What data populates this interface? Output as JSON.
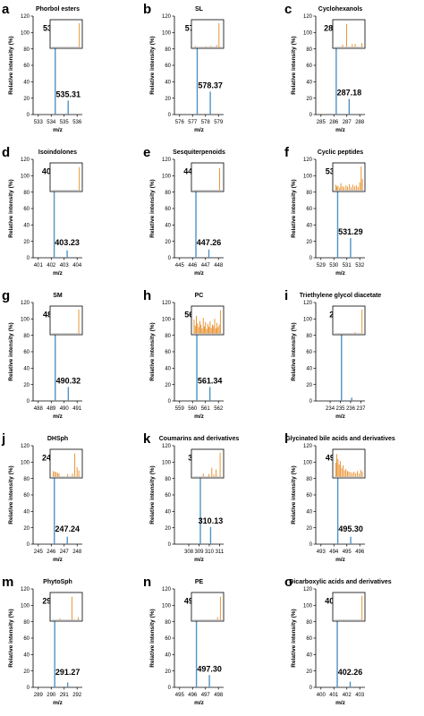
{
  "colors": {
    "main_bar": "#4f93c6",
    "inset_bar": "#e8891f",
    "axis": "#000000"
  },
  "chart_data": [
    {
      "type": "bar",
      "panel": "a",
      "title": "Phorbol esters",
      "xlabel": "m/z",
      "ylabel": "Relative intensity (%)",
      "xlim": [
        532.6,
        536.4
      ],
      "xticks": [
        533,
        534,
        535,
        536
      ],
      "ylim": [
        0,
        120
      ],
      "yticks": [
        0,
        20,
        40,
        60,
        80,
        100,
        120
      ],
      "peaks": [
        {
          "x": 534.31,
          "y": 100,
          "label": "534.31"
        },
        {
          "x": 535.31,
          "y": 17,
          "label": "535.31"
        }
      ],
      "inset": {
        "values": [
          {
            "x": 0.96,
            "y": 0.95
          }
        ]
      }
    },
    {
      "type": "bar",
      "panel": "b",
      "title": "SL",
      "xlabel": "m/z",
      "ylabel": "Relative intensity (%)",
      "xlim": [
        575.6,
        579.4
      ],
      "xticks": [
        576,
        577,
        578,
        579
      ],
      "ylim": [
        0,
        120
      ],
      "yticks": [
        0,
        20,
        40,
        60,
        80,
        100,
        120
      ],
      "peaks": [
        {
          "x": 577.36,
          "y": 100,
          "label": "577.36"
        },
        {
          "x": 578.37,
          "y": 28,
          "label": "578.37"
        }
      ],
      "inset": {
        "values": [
          {
            "x": 0.08,
            "y": 0.04
          },
          {
            "x": 0.45,
            "y": 0.03
          },
          {
            "x": 0.62,
            "y": 0.05
          },
          {
            "x": 0.82,
            "y": 0.08
          },
          {
            "x": 0.9,
            "y": 0.95
          }
        ]
      }
    },
    {
      "type": "bar",
      "panel": "c",
      "title": "Cyclohexanols",
      "xlabel": "m/z",
      "ylabel": "Relative intensity (%)",
      "xlim": [
        284.6,
        288.4
      ],
      "xticks": [
        285,
        286,
        287,
        288
      ],
      "ylim": [
        0,
        120
      ],
      "yticks": [
        0,
        20,
        40,
        60,
        80,
        100,
        120
      ],
      "peaks": [
        {
          "x": 286.18,
          "y": 100,
          "label": "286.18"
        },
        {
          "x": 287.18,
          "y": 19,
          "label": "287.18"
        }
      ],
      "inset": {
        "values": [
          {
            "x": 0.28,
            "y": 0.1
          },
          {
            "x": 0.42,
            "y": 0.92
          },
          {
            "x": 0.62,
            "y": 0.12
          },
          {
            "x": 0.72,
            "y": 0.12
          },
          {
            "x": 0.95,
            "y": 0.16
          }
        ]
      }
    },
    {
      "type": "bar",
      "panel": "d",
      "title": "Isoindolones",
      "xlabel": "m/z",
      "ylabel": "Relative intensity (%)",
      "xlim": [
        400.6,
        404.4
      ],
      "xticks": [
        401,
        402,
        403,
        404
      ],
      "ylim": [
        0,
        120
      ],
      "yticks": [
        0,
        20,
        40,
        60,
        80,
        100,
        120
      ],
      "peaks": [
        {
          "x": 402.23,
          "y": 100,
          "label": "402.23"
        },
        {
          "x": 403.23,
          "y": 9,
          "label": "403.23"
        }
      ],
      "inset": {
        "values": [
          {
            "x": 0.96,
            "y": 0.92
          }
        ]
      }
    },
    {
      "type": "bar",
      "panel": "e",
      "title": "Sesquiterpenoids",
      "xlabel": "m/z",
      "ylabel": "Relative intensity (%)",
      "xlim": [
        444.6,
        448.4
      ],
      "xticks": [
        445,
        446,
        447,
        448
      ],
      "ylim": [
        0,
        120
      ],
      "yticks": [
        0,
        20,
        40,
        60,
        80,
        100,
        120
      ],
      "peaks": [
        {
          "x": 446.26,
          "y": 100,
          "label": "446.26"
        },
        {
          "x": 447.26,
          "y": 10,
          "label": "447.26"
        }
      ],
      "inset": {
        "values": [
          {
            "x": 0.92,
            "y": 0.88
          }
        ]
      }
    },
    {
      "type": "bar",
      "panel": "f",
      "title": "Cyclic peptides",
      "xlabel": "m/z",
      "ylabel": "Relative intensity (%)",
      "xlim": [
        528.6,
        532.4
      ],
      "xticks": [
        529,
        530,
        531,
        532
      ],
      "ylim": [
        0,
        120
      ],
      "yticks": [
        0,
        20,
        40,
        60,
        80,
        100,
        120
      ],
      "peaks": [
        {
          "x": 530.29,
          "y": 100,
          "label": "530.29"
        },
        {
          "x": 531.29,
          "y": 24,
          "label": "531.29"
        }
      ],
      "inset": {
        "values": [
          {
            "x": 0.04,
            "y": 0.22
          },
          {
            "x": 0.08,
            "y": 0.15
          },
          {
            "x": 0.12,
            "y": 0.18
          },
          {
            "x": 0.18,
            "y": 0.1
          },
          {
            "x": 0.22,
            "y": 0.28
          },
          {
            "x": 0.28,
            "y": 0.16
          },
          {
            "x": 0.33,
            "y": 0.12
          },
          {
            "x": 0.4,
            "y": 0.2
          },
          {
            "x": 0.45,
            "y": 0.14
          },
          {
            "x": 0.52,
            "y": 0.24
          },
          {
            "x": 0.58,
            "y": 0.12
          },
          {
            "x": 0.64,
            "y": 0.22
          },
          {
            "x": 0.7,
            "y": 0.15
          },
          {
            "x": 0.76,
            "y": 0.2
          },
          {
            "x": 0.82,
            "y": 0.13
          },
          {
            "x": 0.88,
            "y": 0.32
          },
          {
            "x": 0.93,
            "y": 0.95
          },
          {
            "x": 0.97,
            "y": 0.45
          }
        ]
      }
    },
    {
      "type": "bar",
      "panel": "g",
      "title": "SM",
      "xlabel": "m/z",
      "ylabel": "Relative intensity (%)",
      "xlim": [
        487.6,
        491.4
      ],
      "xticks": [
        488,
        489,
        490,
        491
      ],
      "ylim": [
        0,
        120
      ],
      "yticks": [
        0,
        20,
        40,
        60,
        80,
        100,
        120
      ],
      "peaks": [
        {
          "x": 489.31,
          "y": 100,
          "label": "489.31"
        },
        {
          "x": 490.32,
          "y": 17,
          "label": "490.32"
        }
      ],
      "inset": {
        "values": [
          {
            "x": 0.94,
            "y": 0.95
          }
        ]
      }
    },
    {
      "type": "bar",
      "panel": "h",
      "title": "PC",
      "xlabel": "m/z",
      "ylabel": "Relative intensity (%)",
      "xlim": [
        558.6,
        562.4
      ],
      "xticks": [
        559,
        560,
        561,
        562
      ],
      "ylim": [
        0,
        120
      ],
      "yticks": [
        0,
        20,
        40,
        60,
        80,
        100,
        120
      ],
      "peaks": [
        {
          "x": 560.33,
          "y": 100,
          "label": "560.33"
        },
        {
          "x": 561.34,
          "y": 17,
          "label": "561.34"
        }
      ],
      "inset": {
        "values": [
          {
            "x": 0.03,
            "y": 0.55
          },
          {
            "x": 0.07,
            "y": 0.3
          },
          {
            "x": 0.11,
            "y": 0.7
          },
          {
            "x": 0.15,
            "y": 0.4
          },
          {
            "x": 0.19,
            "y": 0.25
          },
          {
            "x": 0.23,
            "y": 0.5
          },
          {
            "x": 0.27,
            "y": 0.35
          },
          {
            "x": 0.31,
            "y": 0.2
          },
          {
            "x": 0.35,
            "y": 0.62
          },
          {
            "x": 0.39,
            "y": 0.28
          },
          {
            "x": 0.43,
            "y": 0.45
          },
          {
            "x": 0.47,
            "y": 0.18
          },
          {
            "x": 0.51,
            "y": 0.38
          },
          {
            "x": 0.55,
            "y": 0.26
          },
          {
            "x": 0.59,
            "y": 0.48
          },
          {
            "x": 0.63,
            "y": 0.22
          },
          {
            "x": 0.67,
            "y": 0.35
          },
          {
            "x": 0.71,
            "y": 0.3
          },
          {
            "x": 0.75,
            "y": 0.58
          },
          {
            "x": 0.79,
            "y": 0.2
          },
          {
            "x": 0.83,
            "y": 0.42
          },
          {
            "x": 0.87,
            "y": 0.25
          },
          {
            "x": 0.91,
            "y": 0.35
          },
          {
            "x": 0.95,
            "y": 0.92
          }
        ]
      }
    },
    {
      "type": "bar",
      "panel": "i",
      "title": "Triethylene glycol diacetate",
      "xlabel": "m/z",
      "ylabel": "Relative intensity (%)",
      "xlim": [
        232.6,
        237.4
      ],
      "xticks": [
        234,
        235,
        236,
        237
      ],
      "ylim": [
        0,
        120
      ],
      "yticks": [
        0,
        20,
        40,
        60,
        80,
        100,
        120
      ],
      "peaks": [
        {
          "x": 235.11,
          "y": 100,
          "label": "235.11"
        },
        {
          "x": 236.11,
          "y": 4
        }
      ],
      "inset": {
        "values": [
          {
            "x": 0.72,
            "y": 0.05
          },
          {
            "x": 0.96,
            "y": 0.95
          }
        ]
      }
    },
    {
      "type": "bar",
      "panel": "j",
      "title": "DHSph",
      "xlabel": "m/z",
      "ylabel": "Relative intensity (%)",
      "xlim": [
        244.6,
        248.4
      ],
      "xticks": [
        245,
        246,
        247,
        248
      ],
      "ylim": [
        0,
        120
      ],
      "yticks": [
        0,
        20,
        40,
        60,
        80,
        100,
        120
      ],
      "peaks": [
        {
          "x": 246.24,
          "y": 100,
          "label": "246.24"
        },
        {
          "x": 247.24,
          "y": 9,
          "label": "247.24"
        }
      ],
      "inset": {
        "values": [
          {
            "x": 0.05,
            "y": 0.22
          },
          {
            "x": 0.1,
            "y": 0.2
          },
          {
            "x": 0.15,
            "y": 0.18
          },
          {
            "x": 0.2,
            "y": 0.15
          },
          {
            "x": 0.25,
            "y": 0.12
          },
          {
            "x": 0.55,
            "y": 0.1
          },
          {
            "x": 0.72,
            "y": 0.12
          },
          {
            "x": 0.8,
            "y": 0.92
          },
          {
            "x": 0.88,
            "y": 0.38
          },
          {
            "x": 0.94,
            "y": 0.25
          }
        ]
      }
    },
    {
      "type": "bar",
      "panel": "k",
      "title": "Coumarins and derivatives",
      "xlabel": "m/z",
      "ylabel": "Relative intensity (%)",
      "xlim": [
        306.6,
        311.4
      ],
      "xticks": [
        308,
        309,
        310,
        311
      ],
      "ylim": [
        0,
        120
      ],
      "yticks": [
        0,
        20,
        40,
        60,
        80,
        100,
        120
      ],
      "peaks": [
        {
          "x": 309.13,
          "y": 100,
          "label": "309.13"
        },
        {
          "x": 310.13,
          "y": 21,
          "label": "310.13"
        }
      ],
      "inset": {
        "values": [
          {
            "x": 0.35,
            "y": 0.12
          },
          {
            "x": 0.55,
            "y": 0.1
          },
          {
            "x": 0.65,
            "y": 0.35
          },
          {
            "x": 0.72,
            "y": 0.08
          },
          {
            "x": 0.8,
            "y": 0.28
          },
          {
            "x": 0.94,
            "y": 0.95
          }
        ]
      }
    },
    {
      "type": "bar",
      "panel": "l",
      "title": "Glycinated bile acids and derivatives",
      "xlabel": "m/z",
      "ylabel": "Relative intensity (%)",
      "xlim": [
        492.6,
        496.4
      ],
      "xticks": [
        493,
        494,
        495,
        496
      ],
      "ylim": [
        0,
        120
      ],
      "yticks": [
        0,
        20,
        40,
        60,
        80,
        100,
        120
      ],
      "peaks": [
        {
          "x": 494.3,
          "y": 100,
          "label": "494.30"
        },
        {
          "x": 495.3,
          "y": 9,
          "label": "495.30"
        }
      ],
      "inset": {
        "values": [
          {
            "x": 0.04,
            "y": 0.55
          },
          {
            "x": 0.08,
            "y": 0.9
          },
          {
            "x": 0.12,
            "y": 0.7
          },
          {
            "x": 0.16,
            "y": 0.48
          },
          {
            "x": 0.2,
            "y": 0.62
          },
          {
            "x": 0.25,
            "y": 0.35
          },
          {
            "x": 0.3,
            "y": 0.45
          },
          {
            "x": 0.35,
            "y": 0.25
          },
          {
            "x": 0.4,
            "y": 0.3
          },
          {
            "x": 0.45,
            "y": 0.22
          },
          {
            "x": 0.5,
            "y": 0.2
          },
          {
            "x": 0.56,
            "y": 0.18
          },
          {
            "x": 0.62,
            "y": 0.15
          },
          {
            "x": 0.68,
            "y": 0.2
          },
          {
            "x": 0.74,
            "y": 0.14
          },
          {
            "x": 0.8,
            "y": 0.22
          },
          {
            "x": 0.86,
            "y": 0.12
          },
          {
            "x": 0.92,
            "y": 0.26
          },
          {
            "x": 0.97,
            "y": 0.2
          }
        ]
      }
    },
    {
      "type": "bar",
      "panel": "m",
      "title": "PhytoSph",
      "xlabel": "m/z",
      "ylabel": "Relative intensity (%)",
      "xlim": [
        288.6,
        292.4
      ],
      "xticks": [
        289,
        290,
        291,
        292
      ],
      "ylim": [
        0,
        120
      ],
      "yticks": [
        0,
        20,
        40,
        60,
        80,
        100,
        120
      ],
      "peaks": [
        {
          "x": 290.27,
          "y": 100,
          "label": "290.27"
        },
        {
          "x": 291.27,
          "y": 6,
          "label": "291.27"
        }
      ],
      "inset": {
        "values": [
          {
            "x": 0.28,
            "y": 0.06
          },
          {
            "x": 0.7,
            "y": 0.92
          },
          {
            "x": 0.92,
            "y": 0.1
          }
        ]
      }
    },
    {
      "type": "bar",
      "panel": "n",
      "title": "PE",
      "xlabel": "m/z",
      "ylabel": "Relative intensity (%)",
      "xlim": [
        494.6,
        498.4
      ],
      "xticks": [
        495,
        496,
        497,
        498
      ],
      "ylim": [
        0,
        120
      ],
      "yticks": [
        0,
        20,
        40,
        60,
        80,
        100,
        120
      ],
      "peaks": [
        {
          "x": 496.3,
          "y": 100,
          "label": "496.30"
        },
        {
          "x": 497.3,
          "y": 15,
          "label": "497.30"
        }
      ],
      "inset": {
        "values": [
          {
            "x": 0.85,
            "y": 0.1
          },
          {
            "x": 0.95,
            "y": 0.92
          }
        ]
      }
    },
    {
      "type": "bar",
      "panel": "o",
      "title": "Dicarboxylic acids and derivatives",
      "xlabel": "m/z",
      "ylabel": "Relative intensity (%)",
      "xlim": [
        399.6,
        403.4
      ],
      "xticks": [
        400,
        401,
        402,
        403
      ],
      "ylim": [
        0,
        120
      ],
      "yticks": [
        0,
        20,
        40,
        60,
        80,
        100,
        120
      ],
      "peaks": [
        {
          "x": 401.26,
          "y": 100,
          "label": "401.26"
        },
        {
          "x": 402.26,
          "y": 7,
          "label": "402.26"
        }
      ],
      "inset": {
        "values": [
          {
            "x": 0.96,
            "y": 0.95
          }
        ]
      }
    }
  ]
}
